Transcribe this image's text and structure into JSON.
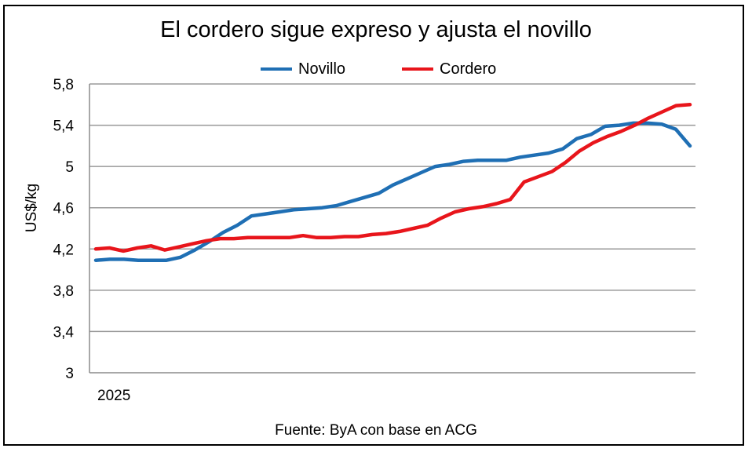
{
  "chart_data": {
    "type": "line",
    "title": "El cordero sigue expreso y ajusta el novillo",
    "ylabel": "US$/kg",
    "xlabel": "",
    "x_tick_label": "2025",
    "ylim": [
      3,
      5.8
    ],
    "yticks": [
      3,
      3.4,
      3.8,
      4.2,
      4.6,
      5,
      5.4,
      5.8
    ],
    "ytick_labels": [
      "3",
      "3,4",
      "3,8",
      "4,2",
      "4,6",
      "5",
      "5,4",
      "5,8"
    ],
    "grid": true,
    "legend_position": "top-center",
    "series": [
      {
        "name": "Novillo",
        "color": "#1F6FB4",
        "values": [
          4.09,
          4.1,
          4.1,
          4.09,
          4.09,
          4.09,
          4.12,
          4.19,
          4.27,
          4.36,
          4.43,
          4.52,
          4.54,
          4.56,
          4.58,
          4.59,
          4.6,
          4.62,
          4.66,
          4.7,
          4.74,
          4.82,
          4.88,
          4.94,
          5.0,
          5.02,
          5.05,
          5.06,
          5.06,
          5.06,
          5.09,
          5.11,
          5.13,
          5.17,
          5.27,
          5.31,
          5.39,
          5.4,
          5.42,
          5.42,
          5.41,
          5.36,
          5.2
        ]
      },
      {
        "name": "Cordero",
        "color": "#E8151B",
        "values": [
          4.2,
          4.21,
          4.18,
          4.21,
          4.23,
          4.19,
          4.22,
          4.25,
          4.28,
          4.3,
          4.3,
          4.31,
          4.31,
          4.31,
          4.31,
          4.33,
          4.31,
          4.31,
          4.32,
          4.32,
          4.34,
          4.35,
          4.37,
          4.4,
          4.43,
          4.5,
          4.56,
          4.59,
          4.61,
          4.64,
          4.68,
          4.85,
          4.9,
          4.95,
          5.04,
          5.15,
          5.23,
          5.29,
          5.34,
          5.4,
          5.47,
          5.53,
          5.59,
          5.6
        ]
      }
    ]
  },
  "footer": {
    "source": "Fuente: ByA con base en ACG"
  }
}
